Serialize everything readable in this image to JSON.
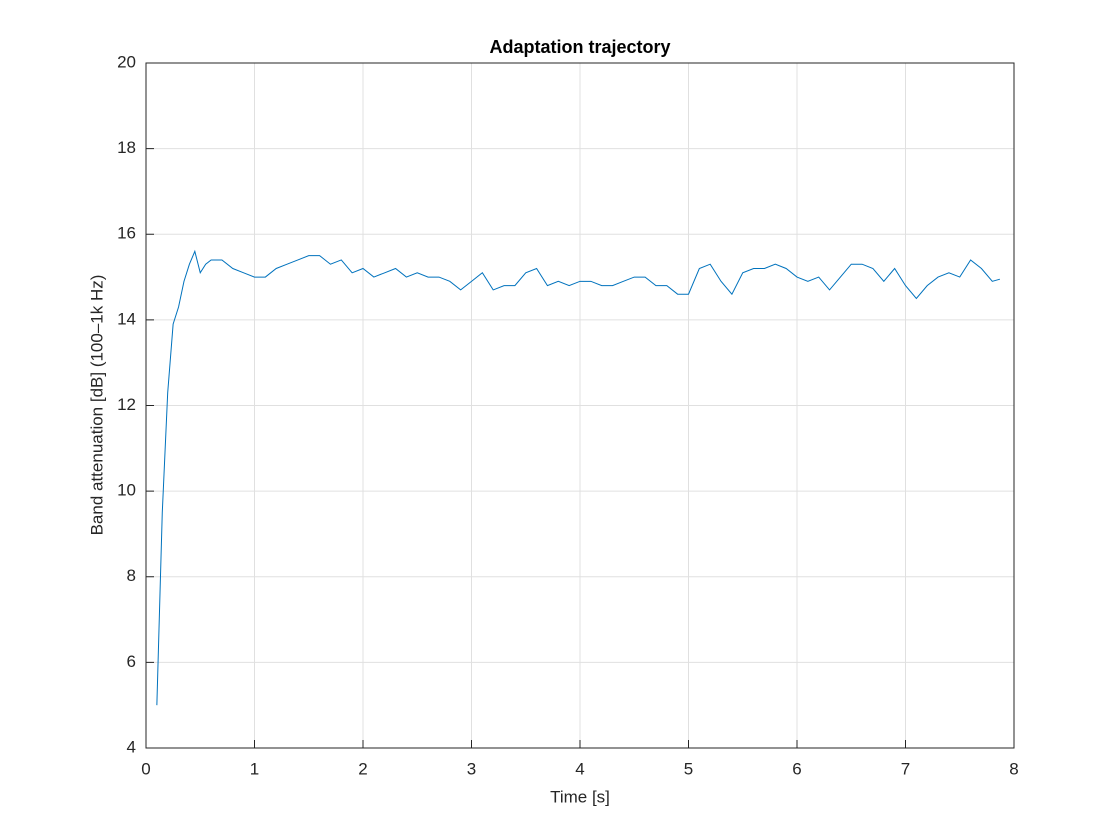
{
  "chart_data": {
    "type": "line",
    "title": "Adaptation trajectory",
    "x_label": "Time [s]",
    "y_label": "Band attenuation [dB] (100–1k Hz)",
    "x": [
      0.1,
      0.15,
      0.2,
      0.25,
      0.3,
      0.35,
      0.4,
      0.45,
      0.5,
      0.55,
      0.6,
      0.7,
      0.8,
      0.9,
      1.0,
      1.1,
      1.2,
      1.3,
      1.4,
      1.5,
      1.6,
      1.7,
      1.8,
      1.9,
      2.0,
      2.1,
      2.2,
      2.3,
      2.4,
      2.5,
      2.6,
      2.7,
      2.8,
      2.9,
      3.0,
      3.1,
      3.2,
      3.3,
      3.4,
      3.5,
      3.6,
      3.7,
      3.8,
      3.9,
      4.0,
      4.1,
      4.2,
      4.3,
      4.4,
      4.5,
      4.6,
      4.7,
      4.8,
      4.9,
      5.0,
      5.1,
      5.2,
      5.3,
      5.4,
      5.5,
      5.6,
      5.7,
      5.8,
      5.9,
      6.0,
      6.1,
      6.2,
      6.3,
      6.4,
      6.5,
      6.6,
      6.7,
      6.8,
      6.9,
      7.0,
      7.1,
      7.2,
      7.3,
      7.4,
      7.5,
      7.6,
      7.7,
      7.8,
      7.87
    ],
    "series": [
      {
        "color": "#0072bd",
        "values": [
          5.0,
          9.5,
          12.3,
          13.9,
          14.3,
          14.9,
          15.3,
          15.6,
          15.1,
          15.3,
          15.4,
          15.4,
          15.2,
          15.1,
          15.0,
          15.0,
          15.2,
          15.3,
          15.4,
          15.5,
          15.5,
          15.3,
          15.4,
          15.1,
          15.2,
          15.0,
          15.1,
          15.2,
          15.0,
          15.1,
          15.0,
          15.0,
          14.9,
          14.7,
          14.9,
          15.1,
          14.7,
          14.8,
          14.8,
          15.1,
          15.2,
          14.8,
          14.9,
          14.8,
          14.9,
          14.9,
          14.8,
          14.8,
          14.9,
          15.0,
          15.0,
          14.8,
          14.8,
          14.6,
          14.6,
          15.2,
          15.3,
          14.9,
          14.6,
          15.1,
          15.2,
          15.2,
          15.3,
          15.2,
          15.0,
          14.9,
          15.0,
          14.7,
          15.0,
          15.3,
          15.3,
          15.2,
          14.9,
          15.2,
          14.8,
          14.5,
          14.8,
          15.0,
          15.1,
          15.0,
          15.4,
          15.2,
          14.9,
          14.95
        ]
      }
    ],
    "xlim": [
      0,
      8
    ],
    "xticks": [
      0,
      1,
      2,
      3,
      4,
      5,
      6,
      7,
      8
    ],
    "ylim": [
      4,
      20
    ],
    "yticks": [
      4,
      6,
      8,
      10,
      12,
      14,
      16,
      18,
      20
    ],
    "grid": true
  }
}
